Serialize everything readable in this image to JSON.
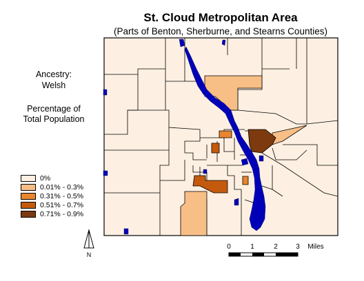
{
  "header": {
    "title": "St. Cloud Metropolitan Area",
    "subtitle": "(Parts of Benton, Sherburne, and Stearns Counties)"
  },
  "sidebar": {
    "ancestry_label": "Ancestry:",
    "ancestry_value": "Welsh",
    "measure_line1": "Percentage of",
    "measure_line2": "Total Population"
  },
  "legend": {
    "classes": [
      {
        "label": "0%",
        "color": "#fdf0e2"
      },
      {
        "label": "0.01% - 0.3%",
        "color": "#f7be86"
      },
      {
        "label": "0.31% - 0.5%",
        "color": "#e9852e"
      },
      {
        "label": "0.51% - 0.7%",
        "color": "#c45a0e"
      },
      {
        "label": "0.71% - 0.9%",
        "color": "#7d3a0f"
      }
    ]
  },
  "colors": {
    "water": "#0000b8",
    "boundary": "#000000"
  },
  "north_arrow": {
    "label": "N",
    "icon": "north-arrow-icon"
  },
  "scale_bar": {
    "ticks": [
      "0",
      "1",
      "2",
      "3"
    ],
    "unit": "Miles"
  }
}
